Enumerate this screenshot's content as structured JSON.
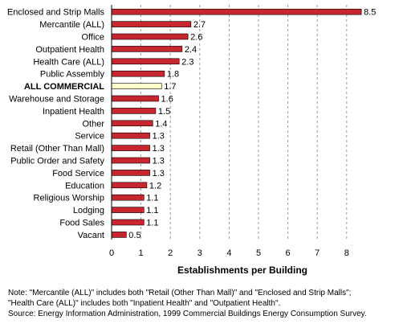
{
  "chart_data": {
    "type": "bar",
    "orientation": "horizontal",
    "title": "",
    "xlabel": "Establishments per Building",
    "ylabel": "",
    "xlim": [
      0,
      9
    ],
    "xticks": [
      0,
      1,
      2,
      3,
      4,
      5,
      6,
      7,
      8
    ],
    "grid": "vertical dashed",
    "categories": [
      "Enclosed and Strip Malls",
      "Mercantile (ALL)",
      "Office",
      "Outpatient Health",
      "Health Care (ALL)",
      "Public Assembly",
      "ALL COMMERCIAL",
      "Warehouse and Storage",
      "Inpatient Health",
      "Other",
      "Service",
      "Retail (Other Than Mall)",
      "Public Order and Safety",
      "Food Service",
      "Education",
      "Religious Worship",
      "Lodging",
      "Food Sales",
      "Vacant"
    ],
    "values": [
      8.5,
      2.7,
      2.6,
      2.4,
      2.3,
      1.8,
      1.7,
      1.6,
      1.5,
      1.4,
      1.3,
      1.3,
      1.3,
      1.3,
      1.2,
      1.1,
      1.1,
      1.1,
      0.5
    ],
    "value_labels": [
      "8.5",
      "2.7",
      "2.6",
      "2.4",
      "2.3",
      "1.8",
      "1.7",
      "1.6",
      "1.5",
      "1.4",
      "1.3",
      "1.3",
      "1.3",
      "1.3",
      "1.2",
      "1.1",
      "1.1",
      "1.1",
      "0.5"
    ],
    "highlight_category": "ALL COMMERCIAL",
    "colors": {
      "bar": "#c8262e",
      "bar_highlight": "#ffffcc",
      "bar_outline": "#000000",
      "grid": "#999999"
    }
  },
  "notes": {
    "line1": "Note: \"Mercantile (ALL)\" includes both \"Retail (Other Than Mall)\" and \"Enclosed and Strip Malls\";",
    "line2": "\"Health Care (ALL)\" includes both \"Inpatient Health\" and \"Outpatient Health\".",
    "line3": "Source: Energy Information Administration, 1999 Commercial Buildings Energy Consumption Survey."
  }
}
